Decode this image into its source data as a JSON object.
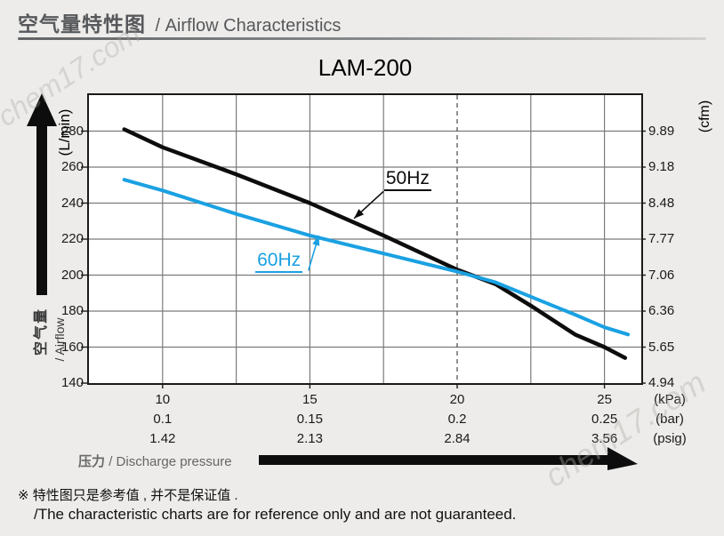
{
  "watermark": "chem17.com",
  "header": {
    "title_zh": "空气量特性图",
    "title_en": "/ Airflow Characteristics"
  },
  "chart_data": {
    "type": "line",
    "title": "LAM-200",
    "grid": true,
    "x_axis": {
      "label_zh": "压力",
      "label_en": "/ Discharge pressure",
      "rows": [
        {
          "unit": "(kPa)",
          "values": [
            "10",
            "15",
            "20",
            "25"
          ]
        },
        {
          "unit": "(bar)",
          "values": [
            "0.1",
            "0.15",
            "0.2",
            "0.25"
          ]
        },
        {
          "unit": "(psig)",
          "values": [
            "1.42",
            "2.13",
            "2.84",
            "3.56"
          ]
        }
      ],
      "major_ticks_kpa": [
        10,
        15,
        20,
        25
      ],
      "minor_gridlines_kpa": [
        12.5,
        17.5,
        22.5
      ],
      "dashed_vline_kpa": 20,
      "range_kpa": [
        7.5,
        26.25
      ]
    },
    "y_axis": {
      "unit": "(L/min)",
      "label_zh": "空气量",
      "label_en": "/ Airflow",
      "ticks_lmin": [
        140,
        160,
        180,
        200,
        220,
        240,
        260,
        280
      ],
      "range_lmin": [
        140,
        300
      ],
      "gridline_step_lmin": 20
    },
    "right_axis": {
      "unit": "(cfm)",
      "ticks_cfm": [
        "4.94",
        "5.65",
        "6.36",
        "7.06",
        "7.77",
        "8.48",
        "9.18",
        "9.89"
      ]
    },
    "series": [
      {
        "name": "50Hz",
        "color": "#0d0d0d",
        "width": 4.5,
        "points": [
          [
            8.7,
            281
          ],
          [
            10,
            271
          ],
          [
            12.5,
            256
          ],
          [
            15,
            240
          ],
          [
            17.5,
            222
          ],
          [
            20,
            203
          ],
          [
            21.3,
            195
          ],
          [
            22.5,
            183
          ],
          [
            24,
            167
          ],
          [
            25,
            160
          ],
          [
            25.7,
            154
          ]
        ]
      },
      {
        "name": "60Hz",
        "color": "#1aa1e2",
        "width": 4,
        "points": [
          [
            8.7,
            253
          ],
          [
            10,
            247
          ],
          [
            12.5,
            234
          ],
          [
            15,
            222
          ],
          [
            17.5,
            212
          ],
          [
            20,
            202
          ],
          [
            21.3,
            196
          ],
          [
            22.5,
            188
          ],
          [
            24,
            178
          ],
          [
            25,
            171
          ],
          [
            25.8,
            167
          ]
        ]
      }
    ],
    "annotations": [
      {
        "text": "50Hz",
        "color": "#0d0d0d",
        "label_pos": [
          17.52,
          259
        ],
        "arrow_from": [
          17.5,
          246.5
        ],
        "arrow_to": [
          16.5,
          231.5
        ]
      },
      {
        "text": "60Hz",
        "color": "#1aa1e2",
        "label_pos": [
          13.15,
          213.5
        ],
        "arrow_from": [
          14.95,
          202.5
        ],
        "arrow_to": [
          15.3,
          222
        ]
      }
    ]
  },
  "footer": {
    "line1": "※ 特性图只是参考值 , 并不是保证值 .",
    "line2": "/The characteristic charts are for reference only and are not guaranteed."
  }
}
